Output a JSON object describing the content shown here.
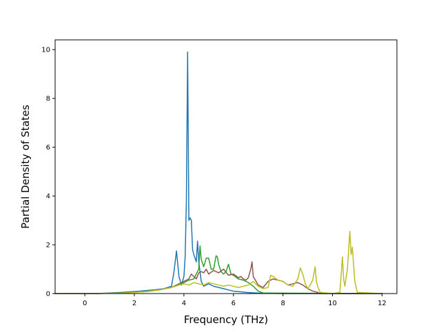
{
  "chart_data": {
    "type": "line",
    "xlabel": "Frequency (THz)",
    "ylabel": "Partial Density of States",
    "xlim": [
      -1.2,
      12.6
    ],
    "ylim": [
      0,
      10.4
    ],
    "xticks": [
      0,
      2,
      4,
      6,
      8,
      10,
      12
    ],
    "yticks": [
      0,
      2,
      4,
      6,
      8,
      10
    ],
    "grid": false,
    "series": [
      {
        "color": "#1f77b4",
        "x": [
          -1.2,
          0.5,
          1.5,
          2.2,
          2.8,
          3.2,
          3.5,
          3.6,
          3.7,
          3.8,
          3.9,
          4.0,
          4.05,
          4.1,
          4.15,
          4.2,
          4.25,
          4.3,
          4.35,
          4.4,
          4.5,
          4.55,
          4.6,
          4.7,
          4.8,
          5.0,
          5.2,
          5.4,
          5.6,
          5.8,
          6.0,
          6.2,
          6.5,
          6.8,
          7.0,
          7.5,
          8.0,
          12.0
        ],
        "y": [
          0,
          0,
          0.05,
          0.1,
          0.15,
          0.2,
          0.3,
          0.9,
          1.75,
          0.7,
          0.35,
          0.7,
          1.5,
          3.8,
          9.9,
          3.0,
          3.1,
          3.0,
          1.8,
          1.6,
          1.3,
          2.15,
          1.3,
          0.5,
          0.3,
          0.4,
          0.3,
          0.25,
          0.2,
          0.15,
          0.1,
          0.08,
          0.05,
          0.03,
          0.02,
          0.01,
          0,
          0
        ]
      },
      {
        "color": "#2ca02c",
        "x": [
          -1.2,
          0.5,
          1.5,
          2.5,
          3.0,
          3.5,
          3.8,
          4.0,
          4.2,
          4.4,
          4.5,
          4.6,
          4.65,
          4.7,
          4.8,
          4.9,
          5.0,
          5.1,
          5.2,
          5.3,
          5.35,
          5.4,
          5.5,
          5.6,
          5.7,
          5.8,
          5.9,
          6.0,
          6.2,
          6.4,
          6.6,
          6.8,
          7.0,
          7.2,
          12.0
        ],
        "y": [
          0,
          0,
          0.03,
          0.1,
          0.15,
          0.25,
          0.35,
          0.45,
          0.55,
          0.6,
          0.8,
          1.0,
          1.95,
          1.4,
          1.1,
          1.45,
          1.45,
          1.0,
          1.0,
          1.55,
          1.5,
          1.2,
          0.9,
          0.8,
          0.9,
          1.2,
          0.8,
          0.75,
          0.6,
          0.55,
          0.45,
          0.3,
          0.1,
          0.02,
          0
        ]
      },
      {
        "color": "#8c564b",
        "x": [
          -1.2,
          0.5,
          1.5,
          2.5,
          3.0,
          3.5,
          3.8,
          4.0,
          4.2,
          4.3,
          4.5,
          4.6,
          4.7,
          4.8,
          4.9,
          5.0,
          5.2,
          5.4,
          5.6,
          5.8,
          6.0,
          6.2,
          6.3,
          6.4,
          6.5,
          6.6,
          6.7,
          6.75,
          6.8,
          7.0,
          7.2,
          7.4,
          7.6,
          7.8,
          8.0,
          8.2,
          8.4,
          8.6,
          8.8,
          9.0,
          9.2,
          9.4,
          9.5,
          12.0
        ],
        "y": [
          0,
          0,
          0.02,
          0.08,
          0.15,
          0.25,
          0.4,
          0.5,
          0.6,
          0.8,
          0.6,
          0.85,
          0.9,
          0.85,
          1.0,
          0.8,
          0.95,
          0.85,
          1.0,
          0.75,
          0.8,
          0.65,
          0.7,
          0.6,
          0.55,
          0.65,
          1.0,
          1.3,
          0.7,
          0.35,
          0.25,
          0.5,
          0.6,
          0.55,
          0.5,
          0.35,
          0.4,
          0.45,
          0.35,
          0.2,
          0.1,
          0.05,
          0,
          0
        ]
      },
      {
        "color": "#bcbd22",
        "x": [
          -1.2,
          0.5,
          1.5,
          2.5,
          3.0,
          3.5,
          3.8,
          4.0,
          4.2,
          4.4,
          4.6,
          4.8,
          5.0,
          5.2,
          5.4,
          5.6,
          5.8,
          6.0,
          6.2,
          6.4,
          6.6,
          6.8,
          7.0,
          7.2,
          7.4,
          7.5,
          7.6,
          7.8,
          8.0,
          8.2,
          8.4,
          8.6,
          8.7,
          8.8,
          8.9,
          9.0,
          9.1,
          9.2,
          9.3,
          9.35,
          9.4,
          9.5,
          10.0,
          10.3,
          10.4,
          10.45,
          10.5,
          10.6,
          10.7,
          10.75,
          10.8,
          10.9,
          11.0,
          12.0
        ],
        "y": [
          0,
          0,
          0.02,
          0.08,
          0.15,
          0.25,
          0.35,
          0.4,
          0.35,
          0.45,
          0.4,
          0.35,
          0.45,
          0.4,
          0.35,
          0.3,
          0.35,
          0.3,
          0.25,
          0.3,
          0.35,
          0.5,
          0.3,
          0.2,
          0.25,
          0.75,
          0.7,
          0.55,
          0.5,
          0.35,
          0.3,
          0.6,
          1.05,
          0.8,
          0.4,
          0.2,
          0.35,
          0.55,
          1.1,
          0.5,
          0.3,
          0.05,
          0,
          0.05,
          1.5,
          0.6,
          0.3,
          1.0,
          2.55,
          1.6,
          1.9,
          0.5,
          0.05,
          0
        ]
      }
    ]
  }
}
